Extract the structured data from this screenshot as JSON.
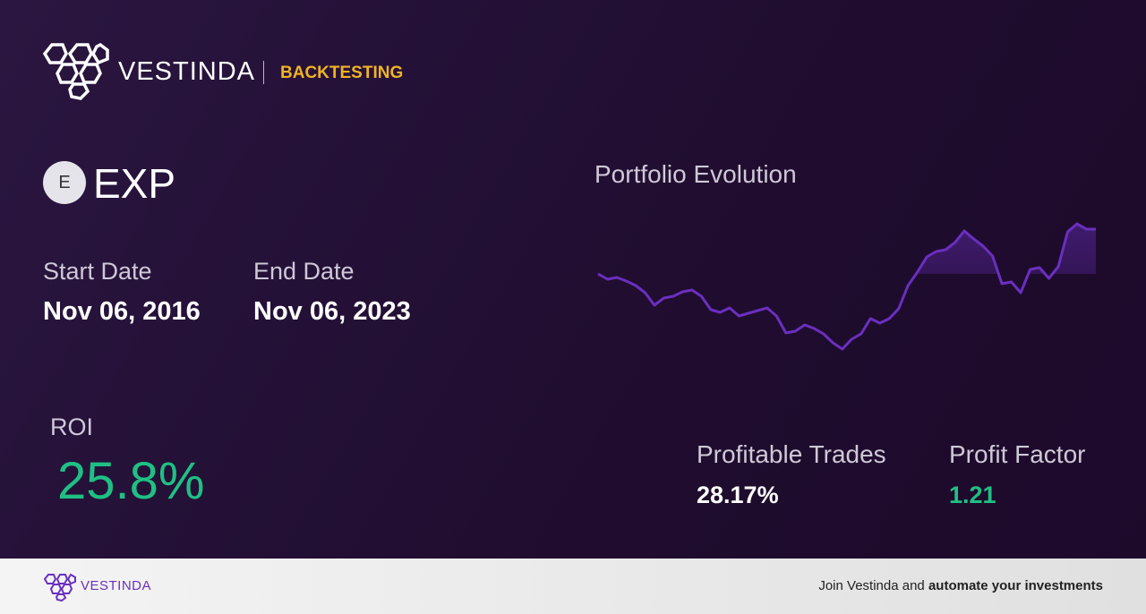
{
  "header": {
    "brand": "VESTINDA",
    "section": "BACKTESTING"
  },
  "asset": {
    "icon": "E",
    "ticker": "EXP"
  },
  "dates": {
    "start_label": "Start Date",
    "start": "Nov 06, 2016",
    "end_label": "End Date",
    "end": "Nov 06, 2023"
  },
  "roi": {
    "label": "ROI",
    "value": "25.8%"
  },
  "chart": {
    "type": "line",
    "title": "Portfolio Evolution",
    "color": "#6a2fc0",
    "values": [
      95,
      89,
      91,
      87,
      82,
      74,
      60,
      68,
      70,
      75,
      77,
      70,
      55,
      52,
      57,
      48,
      51,
      54,
      57,
      48,
      29,
      31,
      38,
      34,
      28,
      18,
      11,
      22,
      28,
      45,
      40,
      45,
      56,
      82,
      97,
      114,
      120,
      122,
      130,
      143,
      134,
      126,
      115,
      84,
      86,
      74,
      100,
      102,
      90,
      103,
      142,
      151,
      145,
      145
    ]
  },
  "stats": {
    "trades_label": "Profitable Trades",
    "trades": "28.17%",
    "factor_label": "Profit Factor",
    "factor": "1.21"
  },
  "footer": {
    "brand": "VESTINDA",
    "text": "Join Vestinda and ",
    "bold": "automate your investments"
  }
}
